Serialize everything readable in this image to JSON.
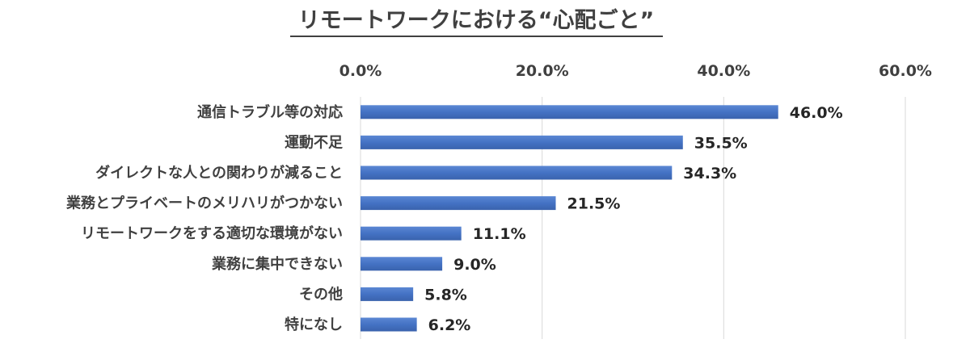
{
  "chart_data": {
    "type": "bar",
    "orientation": "horizontal",
    "title": "リモートワークにおける“心配ごと”",
    "categories": [
      "通信トラブル等の対応",
      "運動不足",
      "ダイレクトな人との関わりが減ること",
      "業務とプライベートのメリハリがつかない",
      "リモートワークをする適切な環境がない",
      "業務に集中できない",
      "その他",
      "特になし"
    ],
    "values": [
      46.0,
      35.5,
      34.3,
      21.5,
      11.1,
      9.0,
      5.8,
      6.2
    ],
    "value_labels": [
      "46.0%",
      "35.5%",
      "34.3%",
      "21.5%",
      "11.1%",
      "9.0%",
      "5.8%",
      "6.2%"
    ],
    "xlim": [
      0,
      60
    ],
    "xticks": [
      0,
      20,
      40,
      60
    ],
    "xtick_labels": [
      "0.0%",
      "20.0%",
      "40.0%",
      "60.0%"
    ],
    "x_axis_position": "top",
    "grid": true,
    "legend": "none",
    "bar_color": "#4472c4"
  }
}
